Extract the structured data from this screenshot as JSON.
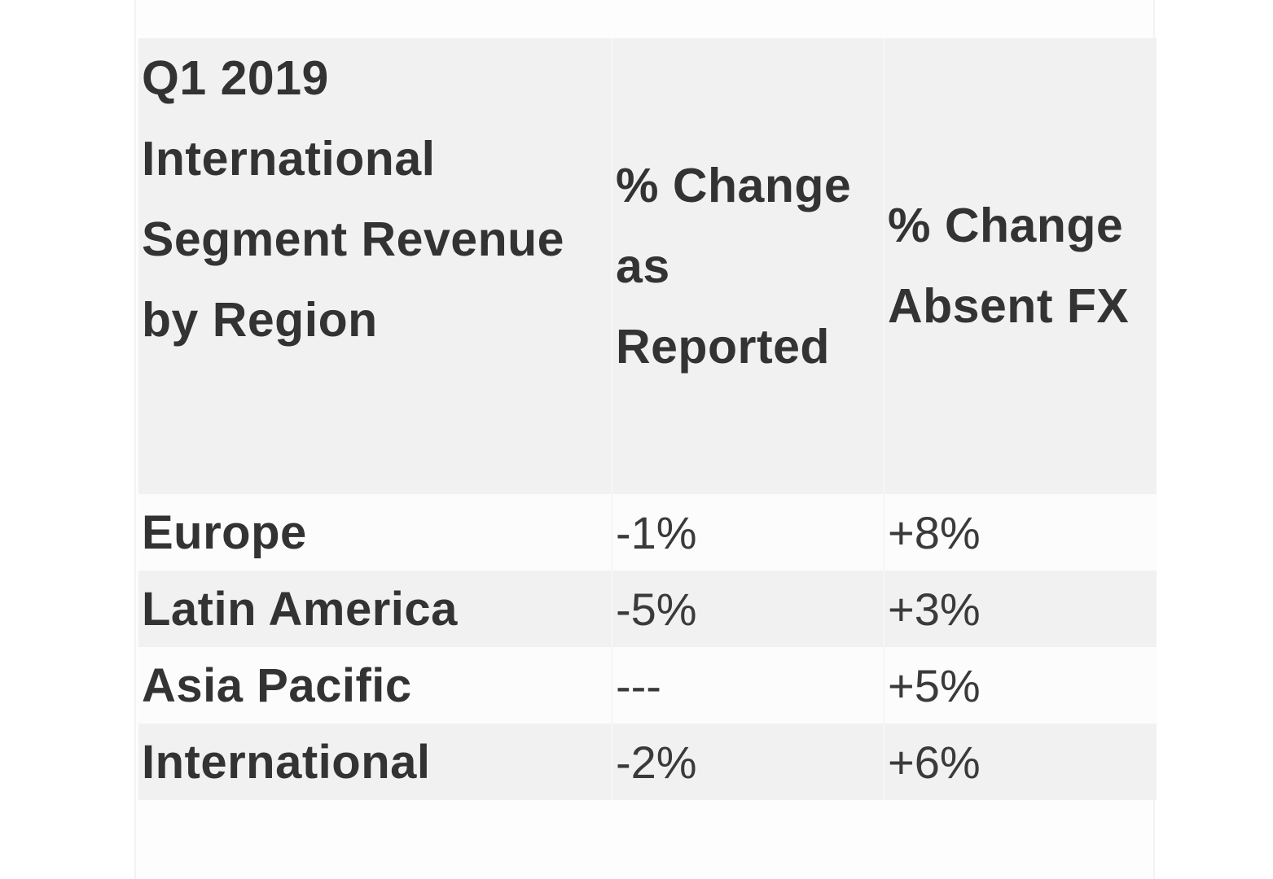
{
  "table": {
    "headers": [
      "Q1 2019 International Segment Revenue by Region",
      "% Change as Reported",
      "% Change Absent FX"
    ],
    "rows": [
      {
        "region": "Europe",
        "reported": "-1%",
        "absent_fx": "+8%"
      },
      {
        "region": "Latin America",
        "reported": "-5%",
        "absent_fx": "+3%"
      },
      {
        "region": "Asia Pacific",
        "reported": "---",
        "absent_fx": "+5%"
      },
      {
        "region": "International",
        "reported": "-2%",
        "absent_fx": "+6%"
      }
    ]
  },
  "colors": {
    "header_bg": "#f1f1f1",
    "text": "#333333"
  }
}
